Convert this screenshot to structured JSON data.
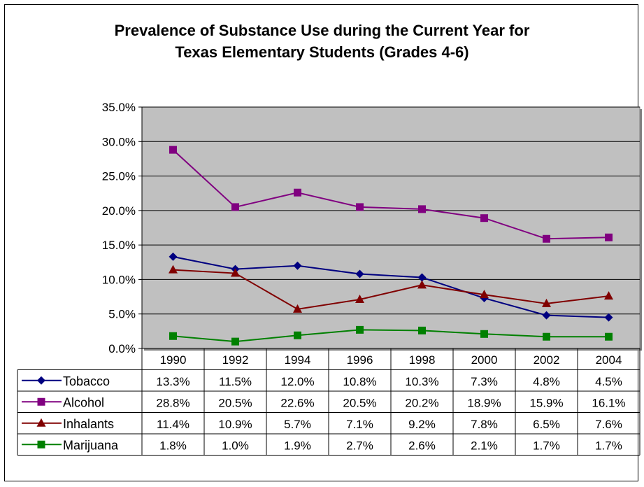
{
  "chart_data": {
    "type": "line",
    "title_lines": [
      "Prevalence of Substance Use during the Current Year for",
      "Texas Elementary Students (Grades 4-6)"
    ],
    "categories": [
      "1990",
      "1992",
      "1994",
      "1996",
      "1998",
      "2000",
      "2002",
      "2004"
    ],
    "y_ticks": [
      "0.0%",
      "5.0%",
      "10.0%",
      "15.0%",
      "20.0%",
      "25.0%",
      "30.0%",
      "35.0%"
    ],
    "ylim": [
      0,
      35
    ],
    "grid": true,
    "plot_background": "#c0c0c0",
    "legend": "data table below chart",
    "series": [
      {
        "name": "Tobacco",
        "color": "#000080",
        "marker": "diamond",
        "values": [
          13.3,
          11.5,
          12.0,
          10.8,
          10.3,
          7.3,
          4.8,
          4.5
        ],
        "labels": [
          "13.3%",
          "11.5%",
          "12.0%",
          "10.8%",
          "10.3%",
          "7.3%",
          "4.8%",
          "4.5%"
        ]
      },
      {
        "name": "Alcohol",
        "color": "#800080",
        "marker": "square",
        "values": [
          28.8,
          20.5,
          22.6,
          20.5,
          20.2,
          18.9,
          15.9,
          16.1
        ],
        "labels": [
          "28.8%",
          "20.5%",
          "22.6%",
          "20.5%",
          "20.2%",
          "18.9%",
          "15.9%",
          "16.1%"
        ]
      },
      {
        "name": "Inhalants",
        "color": "#800000",
        "marker": "triangle",
        "values": [
          11.4,
          10.9,
          5.7,
          7.1,
          9.2,
          7.8,
          6.5,
          7.6
        ],
        "labels": [
          "11.4%",
          "10.9%",
          "5.7%",
          "7.1%",
          "9.2%",
          "7.8%",
          "6.5%",
          "7.6%"
        ]
      },
      {
        "name": "Marijuana",
        "color": "#008000",
        "marker": "square",
        "values": [
          1.8,
          1.0,
          1.9,
          2.7,
          2.6,
          2.1,
          1.7,
          1.7
        ],
        "labels": [
          "1.8%",
          "1.0%",
          "1.9%",
          "2.7%",
          "2.6%",
          "2.1%",
          "1.7%",
          "1.7%"
        ]
      }
    ]
  }
}
